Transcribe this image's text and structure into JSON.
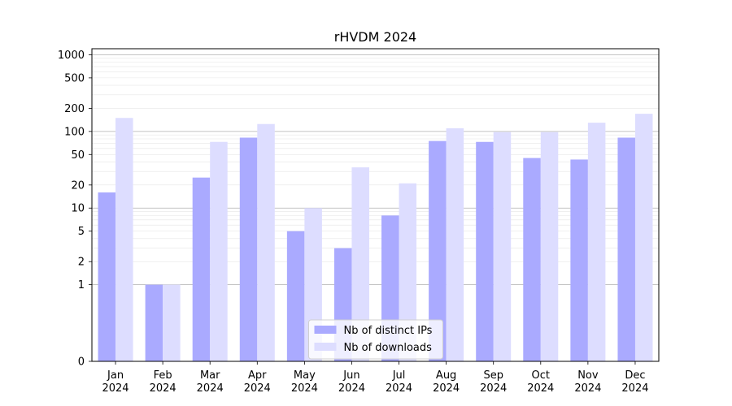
{
  "chart_data": {
    "type": "bar",
    "title": "rHVDM 2024",
    "xlabel": "",
    "ylabel": "",
    "y_scale": "symlog",
    "ylim": [
      0,
      1200
    ],
    "y_ticks": [
      0,
      1,
      2,
      5,
      10,
      20,
      50,
      100,
      200,
      500,
      1000
    ],
    "y_tick_labels": [
      "0",
      "1",
      "2",
      "5",
      "10",
      "20",
      "50",
      "100",
      "200",
      "500",
      "1000"
    ],
    "grid": true,
    "legend_placement": "lower center",
    "categories": [
      [
        "Jan",
        "2024"
      ],
      [
        "Feb",
        "2024"
      ],
      [
        "Mar",
        "2024"
      ],
      [
        "Apr",
        "2024"
      ],
      [
        "May",
        "2024"
      ],
      [
        "Jun",
        "2024"
      ],
      [
        "Jul",
        "2024"
      ],
      [
        "Aug",
        "2024"
      ],
      [
        "Sep",
        "2024"
      ],
      [
        "Oct",
        "2024"
      ],
      [
        "Nov",
        "2024"
      ],
      [
        "Dec",
        "2024"
      ]
    ],
    "series": [
      {
        "name": "Nb of distinct IPs",
        "color": "#aaaaff",
        "values": [
          16,
          1,
          25,
          83,
          5,
          3,
          8,
          75,
          73,
          45,
          43,
          83
        ]
      },
      {
        "name": "Nb of downloads",
        "color": "#ddddff",
        "values": [
          150,
          1,
          73,
          125,
          10,
          34,
          21,
          110,
          98,
          98,
          130,
          170
        ]
      }
    ]
  }
}
